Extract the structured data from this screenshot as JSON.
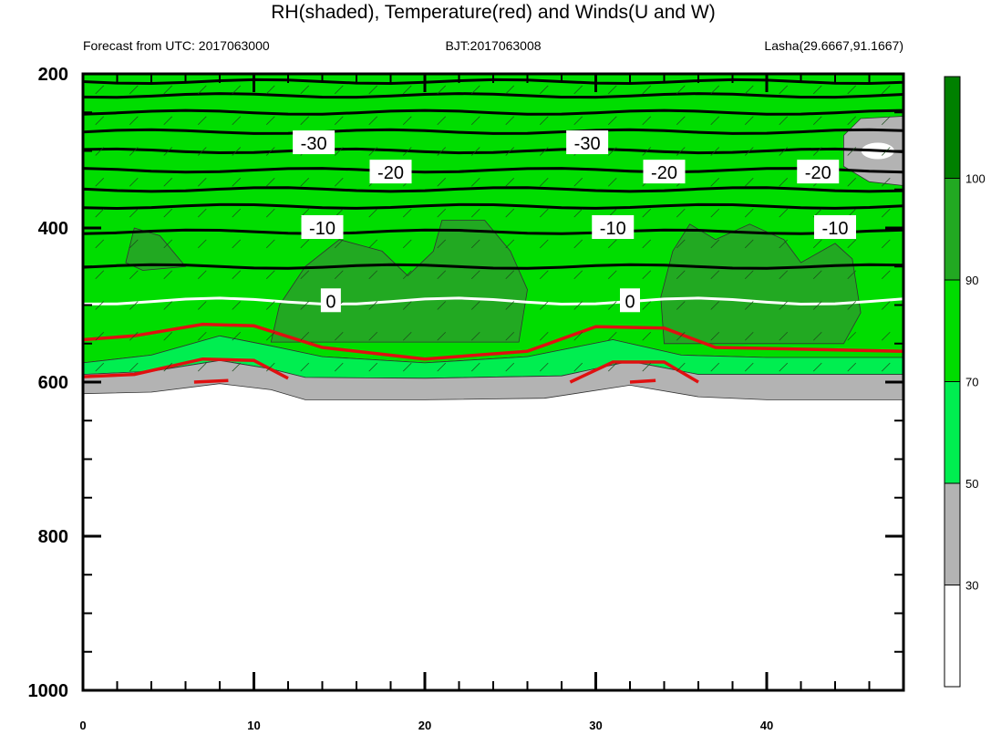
{
  "chart_data": {
    "type": "heatmap",
    "title": "RH(shaded), Temperature(red) and Winds(U and W)",
    "subtitle_left": "Forecast from UTC: 2017063000",
    "subtitle_center": "BJT:2017063008",
    "subtitle_right": "Lasha(29.6667,91.1667)",
    "x_range": [
      0,
      48
    ],
    "y_range": [
      1000,
      200
    ],
    "x_ticks": [
      "0",
      "10",
      "20",
      "30",
      "40"
    ],
    "y_ticks": [
      "200",
      "400",
      "600",
      "800",
      "1000"
    ],
    "colorbar": {
      "levels": [
        "30",
        "50",
        "70",
        "90",
        "100"
      ],
      "colors": [
        "#ffffff",
        "#b3b3b3",
        "#00ee50",
        "#00dd00",
        "#22a922",
        "#008000"
      ]
    },
    "rh_bands": {
      "surface": [
        {
          "x": 0,
          "p": 615
        },
        {
          "x": 4,
          "p": 613
        },
        {
          "x": 8,
          "p": 602
        },
        {
          "x": 11,
          "p": 610
        },
        {
          "x": 13,
          "p": 623
        },
        {
          "x": 20,
          "p": 623
        },
        {
          "x": 27,
          "p": 621
        },
        {
          "x": 32,
          "p": 604
        },
        {
          "x": 36,
          "p": 619
        },
        {
          "x": 40,
          "p": 623
        },
        {
          "x": 48,
          "p": 623
        }
      ],
      "gray_top": [
        {
          "x": 0,
          "p": 590
        },
        {
          "x": 4,
          "p": 586
        },
        {
          "x": 8,
          "p": 572
        },
        {
          "x": 11,
          "p": 583
        },
        {
          "x": 13,
          "p": 594
        },
        {
          "x": 20,
          "p": 595
        },
        {
          "x": 28,
          "p": 592
        },
        {
          "x": 32,
          "p": 573
        },
        {
          "x": 36,
          "p": 590
        },
        {
          "x": 48,
          "p": 590
        }
      ],
      "mid_green_top": [
        {
          "x": 0,
          "p": 575
        },
        {
          "x": 4,
          "p": 565
        },
        {
          "x": 8,
          "p": 540
        },
        {
          "x": 11,
          "p": 553
        },
        {
          "x": 14,
          "p": 567
        },
        {
          "x": 20,
          "p": 575
        },
        {
          "x": 26,
          "p": 567
        },
        {
          "x": 31,
          "p": 545
        },
        {
          "x": 35,
          "p": 565
        },
        {
          "x": 40,
          "p": 568
        },
        {
          "x": 48,
          "p": 568
        }
      ],
      "dark_patches": [
        [
          {
            "x": 11,
            "p": 548
          },
          {
            "x": 11.5,
            "p": 500
          },
          {
            "x": 13,
            "p": 450
          },
          {
            "x": 15,
            "p": 415
          },
          {
            "x": 17.5,
            "p": 430
          },
          {
            "x": 19,
            "p": 462
          },
          {
            "x": 20.5,
            "p": 430
          },
          {
            "x": 21,
            "p": 390
          },
          {
            "x": 23.5,
            "p": 390
          },
          {
            "x": 25,
            "p": 430
          },
          {
            "x": 26,
            "p": 480
          },
          {
            "x": 25.5,
            "p": 548
          }
        ],
        [
          {
            "x": 34,
            "p": 550
          },
          {
            "x": 33.8,
            "p": 490
          },
          {
            "x": 34.5,
            "p": 430
          },
          {
            "x": 35.5,
            "p": 395
          },
          {
            "x": 37,
            "p": 415
          },
          {
            "x": 39,
            "p": 395
          },
          {
            "x": 41,
            "p": 415
          },
          {
            "x": 42,
            "p": 445
          },
          {
            "x": 44,
            "p": 420
          },
          {
            "x": 45,
            "p": 440
          },
          {
            "x": 45.5,
            "p": 510
          },
          {
            "x": 44.5,
            "p": 550
          }
        ],
        [
          {
            "x": 2.5,
            "p": 445
          },
          {
            "x": 3,
            "p": 400
          },
          {
            "x": 4.5,
            "p": 410
          },
          {
            "x": 6,
            "p": 450
          },
          {
            "x": 3.5,
            "p": 455
          }
        ]
      ],
      "upper_gray": [
        {
          "x": 44.5,
          "p": 280
        },
        {
          "x": 45.5,
          "p": 258
        },
        {
          "x": 48,
          "p": 255
        },
        {
          "x": 48,
          "p": 345
        },
        {
          "x": 46,
          "p": 340
        },
        {
          "x": 44.5,
          "p": 320
        }
      ]
    },
    "temperature_isolines": [
      {
        "value": "-30",
        "level": 290,
        "label_x": [
          13.5,
          29.5
        ]
      },
      {
        "value": "-20",
        "level": 328,
        "label_x": [
          18,
          34,
          43
        ]
      },
      {
        "value": "-10",
        "level": 400,
        "label_x": [
          14,
          31,
          44
        ]
      },
      {
        "value": "0",
        "level": 495,
        "label_x": [
          14.5,
          32
        ]
      }
    ],
    "black_isobars_p": [
      210,
      228,
      250,
      275,
      300,
      325,
      350,
      372,
      405,
      450
    ],
    "red_contours": [
      [
        {
          "x": 0,
          "p": 545
        },
        {
          "x": 3,
          "p": 540
        },
        {
          "x": 7,
          "p": 525
        },
        {
          "x": 10,
          "p": 527
        },
        {
          "x": 14,
          "p": 555
        },
        {
          "x": 20,
          "p": 570
        },
        {
          "x": 26,
          "p": 560
        },
        {
          "x": 30,
          "p": 528
        },
        {
          "x": 34,
          "p": 530
        },
        {
          "x": 37,
          "p": 555
        },
        {
          "x": 48,
          "p": 560
        }
      ],
      [
        {
          "x": 0,
          "p": 593
        },
        {
          "x": 3,
          "p": 590
        },
        {
          "x": 7,
          "p": 570
        },
        {
          "x": 10,
          "p": 572
        },
        {
          "x": 12,
          "p": 595
        }
      ],
      [
        {
          "x": 28.5,
          "p": 600
        },
        {
          "x": 31,
          "p": 574
        },
        {
          "x": 34,
          "p": 574
        },
        {
          "x": 36,
          "p": 600
        }
      ],
      [
        {
          "x": 6.5,
          "p": 600
        },
        {
          "x": 8.5,
          "p": 598
        }
      ],
      [
        {
          "x": 32,
          "p": 600
        },
        {
          "x": 33.5,
          "p": 598
        }
      ]
    ],
    "grid": false
  }
}
